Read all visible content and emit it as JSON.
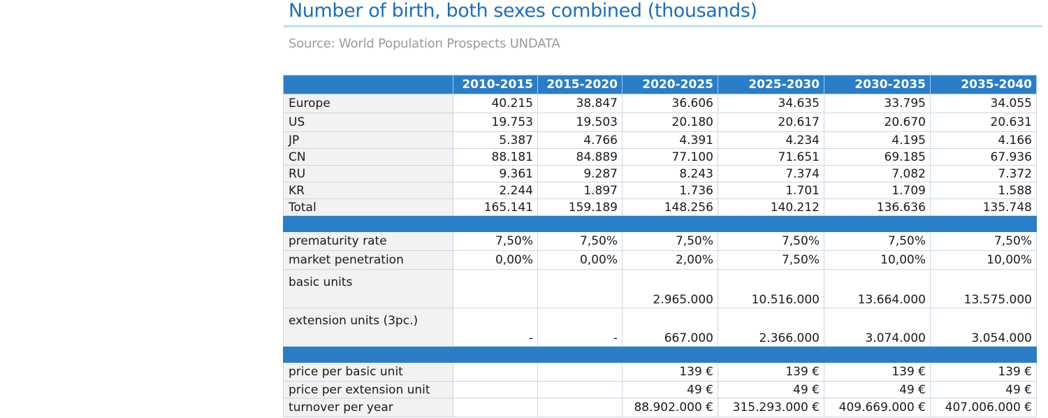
{
  "title": "Number of birth, both sexes combined (thousands)",
  "subtitle": "Source: World Population Prospects UNDATA",
  "columns": [
    "2010-2015",
    "2015-2020",
    "2020-2025",
    "2025-2030",
    "2030-2035",
    "2035-2040"
  ],
  "births": [
    {
      "label": "Europe",
      "values": [
        "40.215",
        "38.847",
        "36.606",
        "34.635",
        "33.795",
        "34.055"
      ]
    },
    {
      "label": "US",
      "values": [
        "19.753",
        "19.503",
        "20.180",
        "20.617",
        "20.670",
        "20.631"
      ]
    },
    {
      "label": "JP",
      "values": [
        "5.387",
        "4.766",
        "4.391",
        "4.234",
        "4.195",
        "4.166"
      ]
    },
    {
      "label": "CN",
      "values": [
        "88.181",
        "84.889",
        "77.100",
        "71.651",
        "69.185",
        "67.936"
      ]
    },
    {
      "label": "RU",
      "values": [
        "9.361",
        "9.287",
        "8.243",
        "7.374",
        "7.082",
        "7.372"
      ]
    },
    {
      "label": "KR",
      "values": [
        "2.244",
        "1.897",
        "1.736",
        "1.701",
        "1.709",
        "1.588"
      ]
    },
    {
      "label": "Total",
      "values": [
        "165.141",
        "159.189",
        "148.256",
        "140.212",
        "136.636",
        "135.748"
      ]
    }
  ],
  "market": [
    {
      "label": "prematurity rate",
      "values": [
        "7,50%",
        "7,50%",
        "7,50%",
        "7,50%",
        "7,50%",
        "7,50%"
      ]
    },
    {
      "label": "market penetration",
      "values": [
        "0,00%",
        "0,00%",
        "2,00%",
        "7,50%",
        "10,00%",
        "10,00%"
      ]
    },
    {
      "label": "basic units",
      "values": [
        "",
        "",
        "2.965.000",
        "10.516.000",
        "13.664.000",
        "13.575.000"
      ]
    },
    {
      "label": "extension units (3pc.)",
      "values": [
        "-",
        "-",
        "667.000",
        "2.366.000",
        "3.074.000",
        "3.054.000"
      ]
    }
  ],
  "pricing": [
    {
      "label": "price per basic unit",
      "values": [
        "",
        "",
        "139 €",
        "139 €",
        "139 €",
        "139 €"
      ]
    },
    {
      "label": "price per extension unit",
      "values": [
        "",
        "",
        "49 €",
        "49 €",
        "49 €",
        "49 €"
      ]
    },
    {
      "label": "turnover per year",
      "values": [
        "",
        "",
        "88.902.000 €",
        "315.293.000 €",
        "409.669.000 €",
        "407.006.000 €"
      ]
    }
  ]
}
